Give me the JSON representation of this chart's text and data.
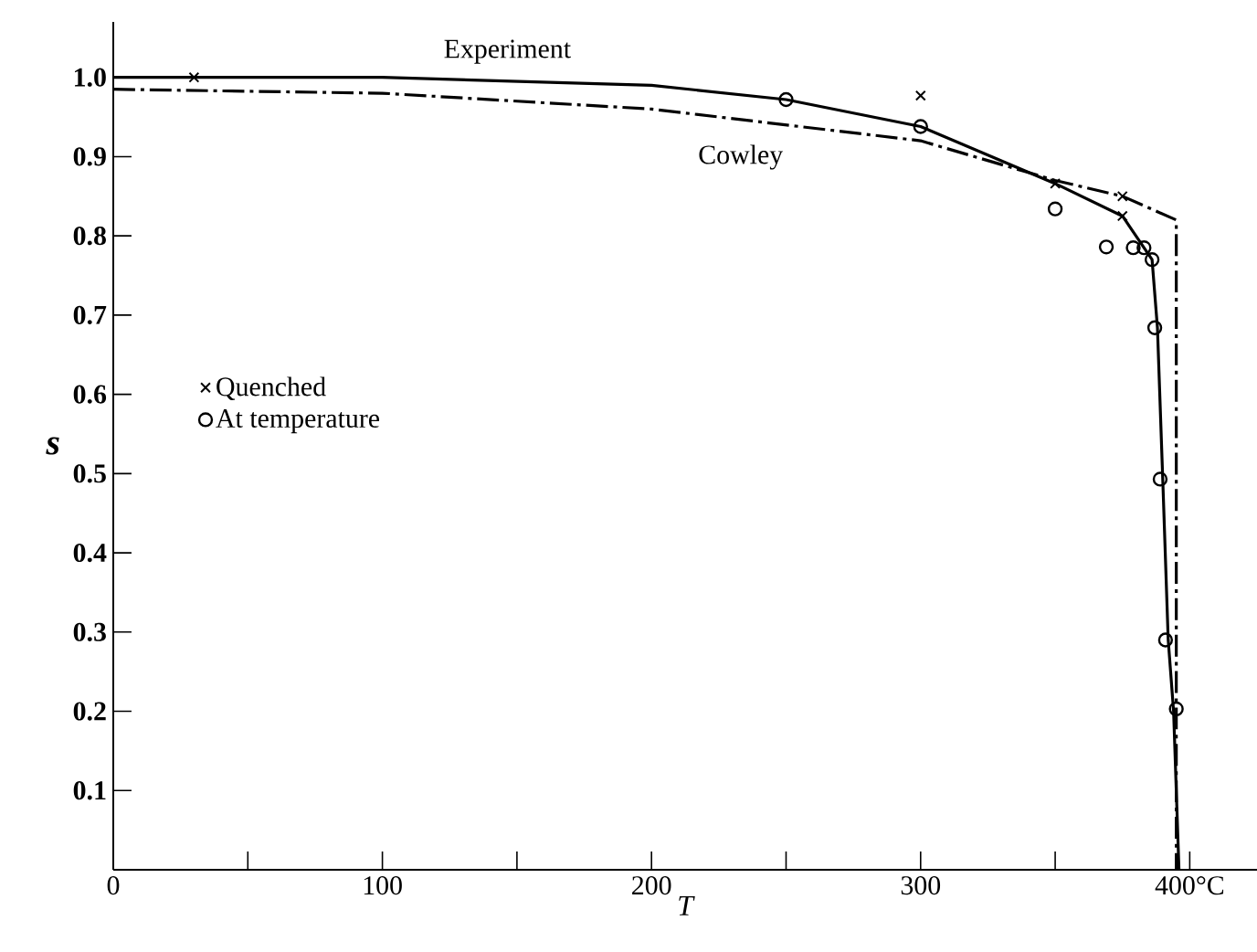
{
  "chart_data": {
    "type": "line",
    "xlabel": "T",
    "ylabel": "s",
    "xlim": [
      0,
      425
    ],
    "ylim": [
      0,
      1.07
    ],
    "xticks": [
      0,
      {
        "value": 50,
        "label": null
      },
      100,
      {
        "value": 150,
        "label": null
      },
      200,
      {
        "value": 250,
        "label": null
      },
      300,
      {
        "value": 350,
        "label": null
      },
      {
        "value": 400,
        "label": "400°C"
      }
    ],
    "yticks": [
      0.1,
      0.2,
      0.3,
      0.4,
      0.5,
      0.6,
      0.7,
      0.8,
      0.9,
      {
        "value": 1,
        "label": "1.0"
      }
    ],
    "legend": "left",
    "grid": false,
    "series": [
      {
        "name": "Experiment",
        "color": "#000000",
        "line_style": "solid",
        "marker": "none",
        "x": [
          0,
          100,
          200,
          250,
          300,
          350,
          375,
          386,
          388,
          390,
          392,
          394,
          396
        ],
        "values": [
          1.0,
          1.0,
          0.99,
          0.972,
          0.938,
          0.866,
          0.825,
          0.77,
          0.684,
          0.49,
          0.29,
          0.2,
          0
        ]
      },
      {
        "name": "Cowley",
        "color": "#000000",
        "line_style": "dashdot",
        "marker": "none",
        "x": [
          0,
          100,
          200,
          300,
          340,
          350,
          375,
          395,
          395
        ],
        "values": [
          0.985,
          0.98,
          0.96,
          0.92,
          0.88,
          0.87,
          0.85,
          0.82,
          0
        ]
      },
      {
        "name": "Quenched",
        "type": "scatter",
        "color": "#000000",
        "marker": "cross",
        "x": [
          30,
          300,
          350,
          375,
          375
        ],
        "values": [
          1.0,
          0.977,
          0.866,
          0.85,
          0.825
        ]
      },
      {
        "name": "At temperature",
        "type": "scatter",
        "color": "#000000",
        "marker": "circle",
        "x": [
          250,
          300,
          350,
          369,
          379,
          383,
          386,
          387,
          389,
          391,
          395
        ],
        "values": [
          0.972,
          0.938,
          0.834,
          0.786,
          0.785,
          0.785,
          0.77,
          0.684,
          0.493,
          0.29,
          0.203
        ]
      }
    ]
  }
}
